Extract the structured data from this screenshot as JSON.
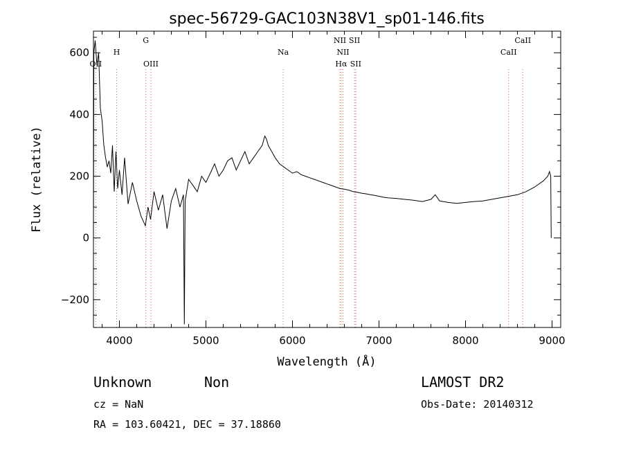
{
  "chart_data": {
    "type": "line",
    "title": "spec-56729-GAC103N38V1_sp01-146.fits",
    "xlabel": "Wavelength (Å)",
    "ylabel": "Flux (relative)",
    "xlim": [
      3700,
      9100
    ],
    "ylim": [
      -290,
      670
    ],
    "xticks": [
      4000,
      5000,
      6000,
      7000,
      8000,
      9000
    ],
    "yticks": [
      -200,
      0,
      200,
      400,
      600
    ],
    "grid": false,
    "series": [
      {
        "color": "#000000",
        "points": [
          [
            3700,
            0
          ],
          [
            3705,
            600
          ],
          [
            3720,
            640
          ],
          [
            3740,
            560
          ],
          [
            3760,
            600
          ],
          [
            3780,
            420
          ],
          [
            3800,
            380
          ],
          [
            3820,
            300
          ],
          [
            3840,
            260
          ],
          [
            3860,
            230
          ],
          [
            3880,
            250
          ],
          [
            3900,
            210
          ],
          [
            3920,
            300
          ],
          [
            3940,
            150
          ],
          [
            3960,
            280
          ],
          [
            3980,
            160
          ],
          [
            4000,
            220
          ],
          [
            4030,
            140
          ],
          [
            4060,
            260
          ],
          [
            4100,
            110
          ],
          [
            4150,
            180
          ],
          [
            4200,
            120
          ],
          [
            4250,
            70
          ],
          [
            4300,
            40
          ],
          [
            4330,
            100
          ],
          [
            4360,
            60
          ],
          [
            4400,
            150
          ],
          [
            4450,
            90
          ],
          [
            4500,
            140
          ],
          [
            4550,
            30
          ],
          [
            4600,
            120
          ],
          [
            4650,
            160
          ],
          [
            4700,
            100
          ],
          [
            4740,
            140
          ],
          [
            4750,
            -280
          ],
          [
            4760,
            120
          ],
          [
            4800,
            190
          ],
          [
            4850,
            170
          ],
          [
            4900,
            150
          ],
          [
            4950,
            200
          ],
          [
            5000,
            180
          ],
          [
            5050,
            210
          ],
          [
            5100,
            240
          ],
          [
            5150,
            200
          ],
          [
            5200,
            220
          ],
          [
            5250,
            250
          ],
          [
            5300,
            260
          ],
          [
            5350,
            220
          ],
          [
            5400,
            250
          ],
          [
            5450,
            280
          ],
          [
            5500,
            240
          ],
          [
            5550,
            260
          ],
          [
            5600,
            280
          ],
          [
            5650,
            300
          ],
          [
            5680,
            330
          ],
          [
            5700,
            320
          ],
          [
            5720,
            300
          ],
          [
            5760,
            280
          ],
          [
            5800,
            260
          ],
          [
            5850,
            240
          ],
          [
            5900,
            230
          ],
          [
            5950,
            220
          ],
          [
            6000,
            210
          ],
          [
            6050,
            215
          ],
          [
            6100,
            205
          ],
          [
            6150,
            200
          ],
          [
            6200,
            195
          ],
          [
            6250,
            190
          ],
          [
            6300,
            185
          ],
          [
            6350,
            180
          ],
          [
            6400,
            175
          ],
          [
            6450,
            170
          ],
          [
            6500,
            165
          ],
          [
            6550,
            160
          ],
          [
            6600,
            158
          ],
          [
            6650,
            155
          ],
          [
            6700,
            150
          ],
          [
            6750,
            148
          ],
          [
            6800,
            145
          ],
          [
            6850,
            143
          ],
          [
            6900,
            140
          ],
          [
            6950,
            138
          ],
          [
            7000,
            135
          ],
          [
            7050,
            132
          ],
          [
            7100,
            130
          ],
          [
            7200,
            128
          ],
          [
            7300,
            125
          ],
          [
            7400,
            122
          ],
          [
            7500,
            118
          ],
          [
            7600,
            125
          ],
          [
            7650,
            140
          ],
          [
            7700,
            120
          ],
          [
            7800,
            115
          ],
          [
            7900,
            112
          ],
          [
            8000,
            115
          ],
          [
            8100,
            118
          ],
          [
            8200,
            120
          ],
          [
            8300,
            125
          ],
          [
            8400,
            130
          ],
          [
            8500,
            135
          ],
          [
            8600,
            140
          ],
          [
            8700,
            150
          ],
          [
            8800,
            165
          ],
          [
            8900,
            185
          ],
          [
            8950,
            200
          ],
          [
            8970,
            215
          ],
          [
            8985,
            200
          ],
          [
            8990,
            0
          ]
        ]
      }
    ],
    "lines": [
      {
        "label": "OII",
        "x": 3727,
        "row": 2
      },
      {
        "label": "H",
        "x": 3968,
        "row": 1
      },
      {
        "label": "G",
        "x": 4305,
        "row": 0
      },
      {
        "label": "OIII",
        "x": 4364,
        "row": 2
      },
      {
        "label": "Na",
        "x": 5893,
        "row": 1
      },
      {
        "label": "NII",
        "x": 6548,
        "row": 0
      },
      {
        "label": "NII",
        "x": 6584,
        "row": 1
      },
      {
        "label": "Hα",
        "x": 6563,
        "row": 2
      },
      {
        "label": "SII",
        "x": 6717,
        "row": 0
      },
      {
        "label": "SII",
        "x": 6731,
        "row": 2
      },
      {
        "label": "CaII",
        "x": 8498,
        "row": 1
      },
      {
        "label": "CaII",
        "x": 8662,
        "row": 0
      }
    ]
  },
  "footer": {
    "class_label": "Unknown",
    "subclass_label": "Non",
    "cz_text": "cz = NaN",
    "radec_text": "RA = 103.60421, DEC =  37.18860",
    "survey": "LAMOST DR2",
    "obs_date": "Obs-Date: 20140312"
  }
}
